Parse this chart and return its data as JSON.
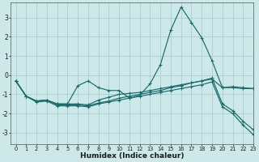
{
  "xlabel": "Humidex (Indice chaleur)",
  "xlim": [
    -0.5,
    23
  ],
  "ylim": [
    -3.6,
    3.8
  ],
  "yticks": [
    -3,
    -2,
    -1,
    0,
    1,
    2,
    3
  ],
  "xticks": [
    0,
    1,
    2,
    3,
    4,
    5,
    6,
    7,
    8,
    9,
    10,
    11,
    12,
    13,
    14,
    15,
    16,
    17,
    18,
    19,
    20,
    21,
    22,
    23
  ],
  "bg_color": "#cce8e8",
  "line_color": "#1a6b6b",
  "grid_color": "#aacece",
  "lines": [
    {
      "x": [
        0,
        1,
        2,
        3,
        4,
        5,
        6,
        7,
        8,
        9,
        10,
        11,
        12,
        13,
        14,
        15,
        16,
        17,
        18,
        19,
        20,
        21,
        22,
        23
      ],
      "y": [
        -0.3,
        -1.1,
        -1.35,
        -1.3,
        -1.5,
        -1.5,
        -0.55,
        -0.3,
        -0.65,
        -0.8,
        -0.8,
        -1.2,
        -1.05,
        -0.45,
        0.55,
        2.35,
        3.55,
        2.75,
        1.95,
        0.75,
        -0.65,
        -0.6,
        -0.65,
        -0.7
      ]
    },
    {
      "x": [
        0,
        1,
        2,
        3,
        4,
        5,
        6,
        7,
        8,
        9,
        10,
        11,
        12,
        13,
        14,
        15,
        16,
        17,
        18,
        19,
        20,
        21,
        22,
        23
      ],
      "y": [
        -0.3,
        -1.1,
        -1.35,
        -1.3,
        -1.5,
        -1.5,
        -1.5,
        -1.55,
        -1.3,
        -1.15,
        -1.0,
        -0.95,
        -0.9,
        -0.8,
        -0.7,
        -0.6,
        -0.5,
        -0.4,
        -0.3,
        -0.2,
        -0.65,
        -0.65,
        -0.7,
        -0.7
      ]
    },
    {
      "x": [
        0,
        1,
        2,
        3,
        4,
        5,
        6,
        7,
        8,
        9,
        10,
        11,
        12,
        13,
        14,
        15,
        16,
        17,
        18,
        19,
        20,
        21,
        22,
        23
      ],
      "y": [
        -0.3,
        -1.1,
        -1.35,
        -1.3,
        -1.55,
        -1.55,
        -1.55,
        -1.6,
        -1.45,
        -1.35,
        -1.2,
        -1.1,
        -1.0,
        -0.9,
        -0.8,
        -0.65,
        -0.55,
        -0.4,
        -0.3,
        -0.15,
        -1.5,
        -1.85,
        -2.4,
        -2.85
      ]
    },
    {
      "x": [
        0,
        1,
        2,
        3,
        4,
        5,
        6,
        7,
        8,
        9,
        10,
        11,
        12,
        13,
        14,
        15,
        16,
        17,
        18,
        19,
        20,
        21,
        22,
        23
      ],
      "y": [
        -0.3,
        -1.1,
        -1.4,
        -1.35,
        -1.6,
        -1.6,
        -1.6,
        -1.65,
        -1.5,
        -1.4,
        -1.3,
        -1.2,
        -1.1,
        -1.0,
        -0.9,
        -0.8,
        -0.7,
        -0.6,
        -0.5,
        -0.35,
        -1.65,
        -2.0,
        -2.6,
        -3.1
      ]
    }
  ]
}
